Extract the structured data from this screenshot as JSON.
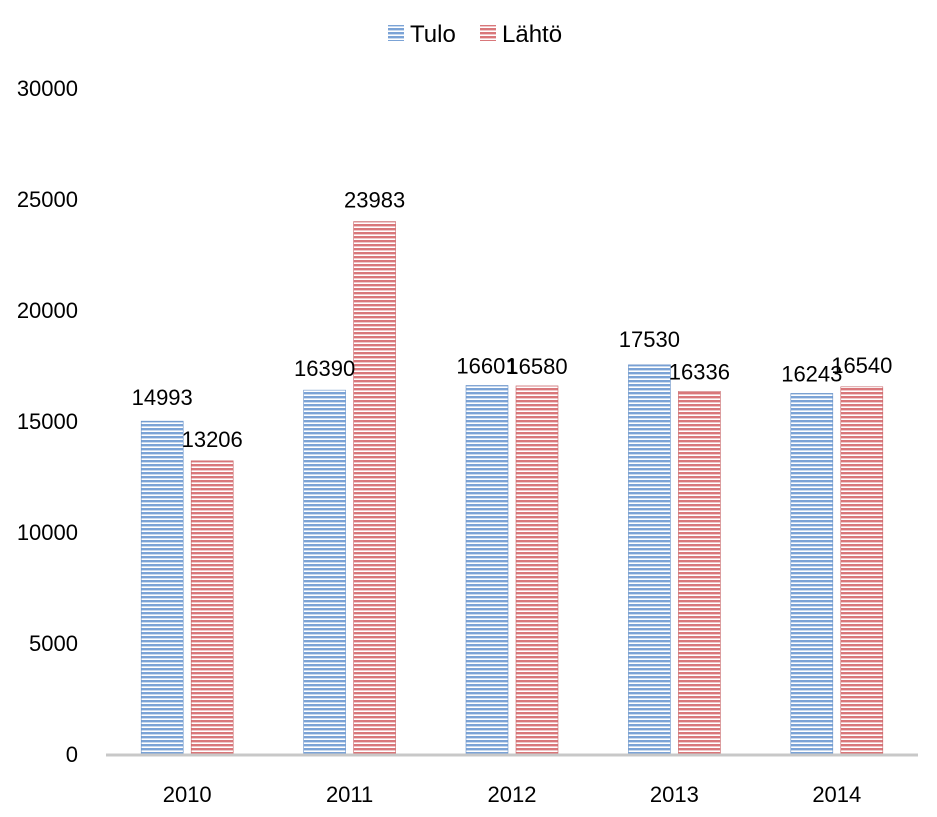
{
  "chart_data": {
    "type": "bar",
    "title": "",
    "xlabel": "",
    "ylabel": "",
    "categories": [
      "2010",
      "2011",
      "2012",
      "2013",
      "2014"
    ],
    "series": [
      {
        "name": "Tulo",
        "values": [
          14993,
          16390,
          16601,
          17530,
          16243
        ],
        "color": "#7ba3d6"
      },
      {
        "name": "Lähtö",
        "values": [
          13206,
          23983,
          16580,
          16336,
          16540
        ],
        "color": "#d9777a"
      }
    ],
    "ylim": [
      0,
      30000
    ],
    "yticks": [
      "0",
      "5000",
      "10000",
      "15000",
      "20000",
      "25000",
      "30000"
    ],
    "data_labels": true,
    "grid": false,
    "legend_position": "top-center",
    "bar_style": "horizontal-striped"
  }
}
